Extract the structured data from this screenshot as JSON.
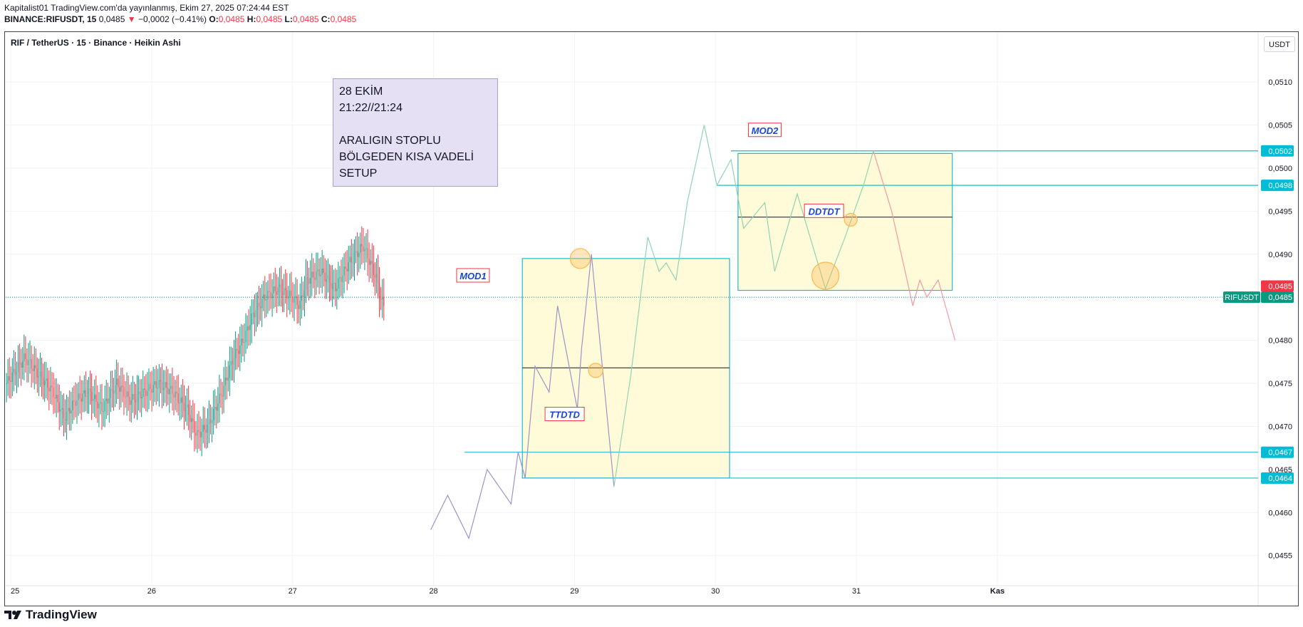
{
  "header": {
    "line1": "Kapitalist01 TradingView.com'da yayınlanmış, Ekim 27, 2025 07:24:44 EST",
    "symbol": "BINANCE:RIFUSDT, 15",
    "last": "0,0485",
    "change_arrow": "▼",
    "change": "−0,0002 (−0.41%)",
    "o_label": "O:",
    "o": "0,0485",
    "h_label": "H:",
    "h": "0,0485",
    "l_label": "L:",
    "l": "0,0485",
    "c_label": "C:",
    "c": "0,0485"
  },
  "chart_title": "RIF / TetherUS · 15 · Binance · Heikin Ashi",
  "currency_badge": "USDT",
  "note_lines": [
    "28 EKİM",
    "21:22//21:24",
    "",
    "ARALIGIN STOPLU",
    "BÖLGEDEN KISA VADELİ",
    "SETUP"
  ],
  "footer_brand": "TradingView",
  "colors": {
    "up": "#089981",
    "down": "#f23645",
    "box_fill": "#fffbd9",
    "box_stroke": "#22b8cf",
    "label_text": "#1848cc",
    "label_border": "#f23645",
    "circle": "#ffb74d"
  },
  "chart_data": {
    "type": "candlestick",
    "candle_style": "Heikin Ashi",
    "x_ticks": [
      "25",
      "26",
      "27",
      "28",
      "29",
      "30",
      "31",
      "Kas"
    ],
    "x_tick_values": [
      0,
      1,
      2,
      3,
      4,
      5,
      6,
      7
    ],
    "y_ticks": [
      "0,0510",
      "0,0505",
      "0,0500",
      "0,0495",
      "0,0490",
      "0,0485",
      "0,0480",
      "0,0475",
      "0,0470",
      "0,0465",
      "0,0460",
      "0,0455"
    ],
    "y_tick_values": [
      0.051,
      0.0505,
      0.05,
      0.0495,
      0.049,
      0.0485,
      0.048,
      0.0475,
      0.047,
      0.0465,
      0.046,
      0.0455
    ],
    "ylim": [
      0.04515,
      0.05158
    ],
    "xlim": [
      -0.04,
      7.05
    ],
    "price_series": [
      [
        -0.03,
        0.0475
      ],
      [
        0.1,
        0.0478
      ],
      [
        0.2,
        0.0476
      ],
      [
        0.3,
        0.0474
      ],
      [
        0.38,
        0.0471
      ],
      [
        0.46,
        0.0473
      ],
      [
        0.55,
        0.0474
      ],
      [
        0.65,
        0.0472
      ],
      [
        0.75,
        0.0475
      ],
      [
        0.85,
        0.0473
      ],
      [
        0.95,
        0.0474
      ],
      [
        1.05,
        0.0475
      ],
      [
        1.15,
        0.0474
      ],
      [
        1.25,
        0.0472
      ],
      [
        1.32,
        0.0469
      ],
      [
        1.4,
        0.047
      ],
      [
        1.5,
        0.0474
      ],
      [
        1.58,
        0.0478
      ],
      [
        1.65,
        0.048
      ],
      [
        1.72,
        0.0483
      ],
      [
        1.8,
        0.0485
      ],
      [
        1.9,
        0.0486
      ],
      [
        2.0,
        0.0485
      ],
      [
        2.05,
        0.0484
      ],
      [
        2.1,
        0.0487
      ],
      [
        2.2,
        0.0488
      ],
      [
        2.3,
        0.0486
      ],
      [
        2.4,
        0.0489
      ],
      [
        2.45,
        0.049
      ],
      [
        2.5,
        0.0491
      ],
      [
        2.55,
        0.0489
      ],
      [
        2.6,
        0.0487
      ],
      [
        2.62,
        0.0485
      ],
      [
        2.65,
        0.0484
      ]
    ],
    "projection_purple": [
      [
        2.98,
        0.0458
      ],
      [
        3.1,
        0.0462
      ],
      [
        3.25,
        0.0457
      ],
      [
        3.38,
        0.0465
      ],
      [
        3.55,
        0.0461
      ],
      [
        3.6,
        0.0467
      ],
      [
        3.65,
        0.0464
      ],
      [
        3.72,
        0.0477
      ],
      [
        3.82,
        0.0474
      ],
      [
        3.88,
        0.0484
      ],
      [
        4.02,
        0.0472
      ],
      [
        4.05,
        0.0479
      ],
      [
        4.12,
        0.049
      ],
      [
        4.28,
        0.0463
      ]
    ],
    "projection_green": [
      [
        4.28,
        0.0463
      ],
      [
        4.4,
        0.0476
      ],
      [
        4.52,
        0.0492
      ],
      [
        4.6,
        0.0488
      ],
      [
        4.65,
        0.0489
      ],
      [
        4.72,
        0.0487
      ],
      [
        4.8,
        0.0496
      ],
      [
        4.92,
        0.0505
      ],
      [
        5.01,
        0.0498
      ],
      [
        5.11,
        0.0501
      ],
      [
        5.2,
        0.0493
      ],
      [
        5.35,
        0.0496
      ],
      [
        5.42,
        0.0488
      ],
      [
        5.58,
        0.0497
      ],
      [
        5.78,
        0.0486
      ],
      [
        5.92,
        0.0492
      ],
      [
        6.05,
        0.0498
      ],
      [
        6.12,
        0.0502
      ]
    ],
    "projection_red": [
      [
        6.12,
        0.0502
      ],
      [
        6.25,
        0.0495
      ],
      [
        6.4,
        0.0484
      ],
      [
        6.45,
        0.0487
      ],
      [
        6.5,
        0.0485
      ],
      [
        6.58,
        0.0487
      ],
      [
        6.7,
        0.048
      ]
    ],
    "zones": [
      {
        "name": "MOD1 box",
        "x0": 3.63,
        "x1": 5.1,
        "y0": 0.0464,
        "y1": 0.04895,
        "mid": 0.04768
      },
      {
        "name": "MOD2 box",
        "x0": 5.16,
        "x1": 6.68,
        "y0": 0.04858,
        "y1": 0.05017,
        "mid": 0.04943
      }
    ],
    "hlines": [
      {
        "value": 0.0502,
        "label": "0,0502",
        "x0": 5.11
      },
      {
        "value": 0.0498,
        "label": "0,0498",
        "x0": 5.01
      },
      {
        "value": 0.0467,
        "label": "0,0467",
        "x0": 3.22
      },
      {
        "value": 0.0464,
        "label": "0,0464",
        "x0": 3.63
      }
    ],
    "last_price": {
      "value": 0.0485,
      "label": "0,0485",
      "symbol_label": "RIFUSDT"
    },
    "bar_price": {
      "value": 0.04863,
      "label": "0,0485"
    },
    "labels": [
      {
        "text": "MOD1",
        "x": 3.28,
        "y": 0.04875
      },
      {
        "text": "MOD2",
        "x": 5.35,
        "y": 0.05044
      },
      {
        "text": "DDTDT",
        "x": 5.77,
        "y": 0.0495
      },
      {
        "text": "TTDTD",
        "x": 3.93,
        "y": 0.04714
      }
    ],
    "circles": [
      {
        "x": 4.04,
        "y": 0.04895,
        "r": 14
      },
      {
        "x": 4.15,
        "y": 0.04765,
        "r": 10
      },
      {
        "x": 5.78,
        "y": 0.04875,
        "r": 19
      },
      {
        "x": 5.96,
        "y": 0.0494,
        "r": 9
      }
    ]
  }
}
